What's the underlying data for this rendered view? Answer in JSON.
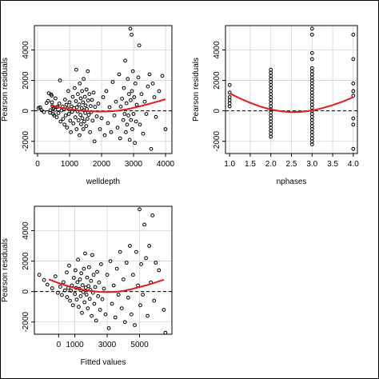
{
  "chart_data": [
    {
      "type": "scatter",
      "xlabel": "welldepth",
      "ylabel": "Pearson residuals",
      "xlim": [
        -100,
        4200
      ],
      "ylim": [
        -2800,
        5600
      ],
      "xticks": [
        0,
        1000,
        2000,
        3000,
        4000
      ],
      "yticks": [
        -2000,
        0,
        2000,
        4000
      ],
      "grid": true,
      "reference_line": 0,
      "curve_color": "#e41a1c",
      "curve": [
        [
          400,
          380
        ],
        [
          700,
          220
        ],
        [
          1000,
          110
        ],
        [
          1300,
          30
        ],
        [
          1600,
          -20
        ],
        [
          1900,
          -50
        ],
        [
          2200,
          -40
        ],
        [
          2500,
          10
        ],
        [
          2800,
          110
        ],
        [
          3100,
          250
        ],
        [
          3400,
          410
        ],
        [
          3700,
          580
        ],
        [
          4000,
          770
        ]
      ],
      "points": [
        [
          30,
          180
        ],
        [
          80,
          230
        ],
        [
          130,
          40
        ],
        [
          200,
          -80
        ],
        [
          280,
          520
        ],
        [
          330,
          660
        ],
        [
          350,
          1160
        ],
        [
          390,
          -120
        ],
        [
          400,
          40
        ],
        [
          420,
          1080
        ],
        [
          440,
          1000
        ],
        [
          450,
          560
        ],
        [
          470,
          300
        ],
        [
          490,
          -200
        ],
        [
          500,
          170
        ],
        [
          520,
          -300
        ],
        [
          550,
          70
        ],
        [
          560,
          820
        ],
        [
          600,
          -420
        ],
        [
          620,
          260
        ],
        [
          650,
          -150
        ],
        [
          680,
          480
        ],
        [
          700,
          2000
        ],
        [
          720,
          -700
        ],
        [
          750,
          30
        ],
        [
          780,
          280
        ],
        [
          800,
          -520
        ],
        [
          820,
          120
        ],
        [
          840,
          -900
        ],
        [
          860,
          740
        ],
        [
          880,
          -300
        ],
        [
          900,
          400
        ],
        [
          920,
          -1100
        ],
        [
          940,
          160
        ],
        [
          960,
          1300
        ],
        [
          980,
          -200
        ],
        [
          1000,
          560
        ],
        [
          1020,
          -640
        ],
        [
          1040,
          -1400
        ],
        [
          1060,
          300
        ],
        [
          1080,
          -60
        ],
        [
          1100,
          920
        ],
        [
          1120,
          -820
        ],
        [
          1140,
          180
        ],
        [
          1160,
          1500
        ],
        [
          1180,
          -420
        ],
        [
          1200,
          640
        ],
        [
          1210,
          2700
        ],
        [
          1220,
          -1200
        ],
        [
          1230,
          240
        ],
        [
          1250,
          -40
        ],
        [
          1260,
          1100
        ],
        [
          1280,
          -620
        ],
        [
          1300,
          420
        ],
        [
          1310,
          -1600
        ],
        [
          1320,
          1800
        ],
        [
          1340,
          -260
        ],
        [
          1350,
          820
        ],
        [
          1360,
          -880
        ],
        [
          1380,
          180
        ],
        [
          1390,
          1300
        ],
        [
          1400,
          -480
        ],
        [
          1420,
          560
        ],
        [
          1430,
          -1200
        ],
        [
          1440,
          2100
        ],
        [
          1450,
          40
        ],
        [
          1460,
          -700
        ],
        [
          1480,
          920
        ],
        [
          1490,
          -140
        ],
        [
          1500,
          360
        ],
        [
          1520,
          -1000
        ],
        [
          1530,
          1400
        ],
        [
          1540,
          120
        ],
        [
          1560,
          -520
        ],
        [
          1570,
          2600
        ],
        [
          1580,
          680
        ],
        [
          1600,
          -260
        ],
        [
          1620,
          1100
        ],
        [
          1640,
          -1400
        ],
        [
          1660,
          320
        ],
        [
          1680,
          -80
        ],
        [
          1700,
          720
        ],
        [
          1720,
          -640
        ],
        [
          1750,
          1200
        ],
        [
          1780,
          -2000
        ],
        [
          1800,
          260
        ],
        [
          1850,
          -360
        ],
        [
          1900,
          480
        ],
        [
          1950,
          -1200
        ],
        [
          2000,
          -480
        ],
        [
          2050,
          900
        ],
        [
          2100,
          -1600
        ],
        [
          2150,
          1300
        ],
        [
          2200,
          -800
        ],
        [
          2250,
          240
        ],
        [
          2300,
          -1400
        ],
        [
          2350,
          1900
        ],
        [
          2400,
          -300
        ],
        [
          2450,
          600
        ],
        [
          2500,
          -1100
        ],
        [
          2550,
          2400
        ],
        [
          2580,
          -1800
        ],
        [
          2600,
          280
        ],
        [
          2640,
          800
        ],
        [
          2680,
          -600
        ],
        [
          2700,
          1500
        ],
        [
          2720,
          -200
        ],
        [
          2740,
          3300
        ],
        [
          2760,
          -1400
        ],
        [
          2780,
          500
        ],
        [
          2800,
          -900
        ],
        [
          2820,
          2100
        ],
        [
          2840,
          -300
        ],
        [
          2860,
          1100
        ],
        [
          2880,
          -1900
        ],
        [
          2900,
          5400
        ],
        [
          2910,
          700
        ],
        [
          2920,
          -600
        ],
        [
          2940,
          5000
        ],
        [
          2950,
          1300
        ],
        [
          2960,
          -1200
        ],
        [
          2980,
          2600
        ],
        [
          3000,
          -200
        ],
        [
          3020,
          900
        ],
        [
          3040,
          -2100
        ],
        [
          3060,
          1800
        ],
        [
          3080,
          -700
        ],
        [
          3100,
          400
        ],
        [
          3150,
          2200
        ],
        [
          3180,
          4300
        ],
        [
          3200,
          -900
        ],
        [
          3250,
          1100
        ],
        [
          3300,
          -1500
        ],
        [
          3350,
          600
        ],
        [
          3400,
          -200
        ],
        [
          3450,
          1600
        ],
        [
          3500,
          2400
        ],
        [
          3550,
          -2500
        ],
        [
          3600,
          1800
        ],
        [
          3650,
          900
        ],
        [
          3700,
          -400
        ],
        [
          3800,
          1300
        ],
        [
          3900,
          2300
        ],
        [
          4000,
          -1200
        ]
      ]
    },
    {
      "type": "scatter",
      "xlabel": "nphases",
      "ylabel": "Pearson residuals",
      "xlim": [
        0.9,
        4.1
      ],
      "ylim": [
        -2800,
        5600
      ],
      "xticks": [
        1.0,
        1.5,
        2.0,
        2.5,
        3.0,
        3.5,
        4.0
      ],
      "yticks": [
        -2000,
        0,
        2000,
        4000
      ],
      "grid": true,
      "reference_line": 0,
      "curve_color": "#e41a1c",
      "curve": [
        [
          1.0,
          1150
        ],
        [
          1.25,
          820
        ],
        [
          1.5,
          530
        ],
        [
          1.75,
          280
        ],
        [
          2.0,
          90
        ],
        [
          2.25,
          -30
        ],
        [
          2.5,
          -80
        ],
        [
          2.75,
          -60
        ],
        [
          3.0,
          20
        ],
        [
          3.25,
          180
        ],
        [
          3.5,
          380
        ],
        [
          3.75,
          620
        ],
        [
          4.0,
          900
        ]
      ],
      "points": [
        [
          1,
          1700
        ],
        [
          1,
          1200
        ],
        [
          1,
          900
        ],
        [
          1,
          700
        ],
        [
          1,
          500
        ],
        [
          1,
          300
        ],
        [
          2,
          2700
        ],
        [
          2,
          2500
        ],
        [
          2,
          2300
        ],
        [
          2,
          2100
        ],
        [
          2,
          1900
        ],
        [
          2,
          1700
        ],
        [
          2,
          1500
        ],
        [
          2,
          1300
        ],
        [
          2,
          1100
        ],
        [
          2,
          900
        ],
        [
          2,
          700
        ],
        [
          2,
          500
        ],
        [
          2,
          300
        ],
        [
          2,
          100
        ],
        [
          2,
          -100
        ],
        [
          2,
          -300
        ],
        [
          2,
          -500
        ],
        [
          2,
          -700
        ],
        [
          2,
          -900
        ],
        [
          2,
          -1100
        ],
        [
          2,
          -1300
        ],
        [
          2,
          -1500
        ],
        [
          2,
          -1700
        ],
        [
          3,
          5400
        ],
        [
          3,
          5000
        ],
        [
          3,
          3800
        ],
        [
          3,
          3400
        ],
        [
          3,
          2800
        ],
        [
          3,
          2600
        ],
        [
          3,
          2400
        ],
        [
          3,
          2200
        ],
        [
          3,
          2000
        ],
        [
          3,
          1800
        ],
        [
          3,
          1600
        ],
        [
          3,
          1400
        ],
        [
          3,
          1200
        ],
        [
          3,
          1000
        ],
        [
          3,
          800
        ],
        [
          3,
          600
        ],
        [
          3,
          400
        ],
        [
          3,
          200
        ],
        [
          3,
          0
        ],
        [
          3,
          -200
        ],
        [
          3,
          -400
        ],
        [
          3,
          -600
        ],
        [
          3,
          -800
        ],
        [
          3,
          -1000
        ],
        [
          3,
          -1200
        ],
        [
          3,
          -1400
        ],
        [
          3,
          -1600
        ],
        [
          3,
          -1800
        ],
        [
          3,
          -2000
        ],
        [
          3,
          -2200
        ],
        [
          4,
          5000
        ],
        [
          4,
          3400
        ],
        [
          4,
          1800
        ],
        [
          4,
          1300
        ],
        [
          4,
          1000
        ],
        [
          4,
          -500
        ],
        [
          4,
          -900
        ],
        [
          4,
          -2500
        ]
      ]
    },
    {
      "type": "scatter",
      "xlabel": "Fitted values",
      "ylabel": "Pearson residuals",
      "xlim": [
        -1500,
        7000
      ],
      "ylim": [
        -2800,
        5600
      ],
      "xticks": [
        0,
        1000,
        3000,
        5000
      ],
      "yticks": [
        -2000,
        0,
        2000,
        4000
      ],
      "grid": true,
      "reference_line": 0,
      "curve_color": "#e41a1c",
      "curve": [
        [
          -600,
          800
        ],
        [
          0,
          560
        ],
        [
          500,
          380
        ],
        [
          1000,
          240
        ],
        [
          1500,
          120
        ],
        [
          2000,
          40
        ],
        [
          2500,
          -20
        ],
        [
          3000,
          -40
        ],
        [
          3500,
          -20
        ],
        [
          4000,
          40
        ],
        [
          4500,
          160
        ],
        [
          5000,
          300
        ],
        [
          5500,
          440
        ],
        [
          6000,
          600
        ],
        [
          6500,
          780
        ]
      ],
      "points": [
        [
          -1200,
          1100
        ],
        [
          -900,
          760
        ],
        [
          -700,
          460
        ],
        [
          -400,
          220
        ],
        [
          -200,
          1000
        ],
        [
          -50,
          -80
        ],
        [
          100,
          320
        ],
        [
          200,
          -220
        ],
        [
          300,
          620
        ],
        [
          400,
          80
        ],
        [
          500,
          1260
        ],
        [
          520,
          -360
        ],
        [
          600,
          240
        ],
        [
          650,
          1700
        ],
        [
          700,
          -600
        ],
        [
          760,
          60
        ],
        [
          820,
          400
        ],
        [
          880,
          -900
        ],
        [
          940,
          900
        ],
        [
          1000,
          -160
        ],
        [
          1040,
          1400
        ],
        [
          1080,
          240
        ],
        [
          1120,
          -520
        ],
        [
          1160,
          620
        ],
        [
          1200,
          2100
        ],
        [
          1240,
          -1000
        ],
        [
          1280,
          180
        ],
        [
          1320,
          800
        ],
        [
          1360,
          -300
        ],
        [
          1400,
          1200
        ],
        [
          1440,
          -1400
        ],
        [
          1480,
          420
        ],
        [
          1520,
          -40
        ],
        [
          1560,
          1500
        ],
        [
          1600,
          -700
        ],
        [
          1640,
          2500
        ],
        [
          1680,
          260
        ],
        [
          1720,
          -200
        ],
        [
          1760,
          920
        ],
        [
          1800,
          -1100
        ],
        [
          1840,
          360
        ],
        [
          1880,
          1600
        ],
        [
          1920,
          -480
        ],
        [
          1960,
          120
        ],
        [
          2000,
          700
        ],
        [
          2040,
          -1600
        ],
        [
          2080,
          2400
        ],
        [
          2120,
          -80
        ],
        [
          2160,
          1100
        ],
        [
          2200,
          -800
        ],
        [
          2260,
          300
        ],
        [
          2320,
          -1900
        ],
        [
          2380,
          1300
        ],
        [
          2440,
          -300
        ],
        [
          2500,
          600
        ],
        [
          2560,
          -1200
        ],
        [
          2620,
          1800
        ],
        [
          2700,
          -500
        ],
        [
          2800,
          200
        ],
        [
          2900,
          -1500
        ],
        [
          3000,
          1100
        ],
        [
          3100,
          -2400
        ],
        [
          3200,
          2000
        ],
        [
          3300,
          -800
        ],
        [
          3400,
          400
        ],
        [
          3500,
          -1700
        ],
        [
          3600,
          1500
        ],
        [
          3700,
          -200
        ],
        [
          3800,
          2600
        ],
        [
          3900,
          -1100
        ],
        [
          4000,
          800
        ],
        [
          4100,
          -2000
        ],
        [
          4200,
          1900
        ],
        [
          4300,
          -400
        ],
        [
          4400,
          3000
        ],
        [
          4500,
          -1500
        ],
        [
          4600,
          1100
        ],
        [
          4700,
          -2200
        ],
        [
          4800,
          2600
        ],
        [
          4900,
          400
        ],
        [
          5000,
          5400
        ],
        [
          5050,
          -900
        ],
        [
          5100,
          1800
        ],
        [
          5200,
          -200
        ],
        [
          5300,
          4400
        ],
        [
          5400,
          2200
        ],
        [
          5500,
          -1600
        ],
        [
          5600,
          3000
        ],
        [
          5700,
          600
        ],
        [
          5800,
          5000
        ],
        [
          5900,
          -600
        ],
        [
          6000,
          1900
        ],
        [
          6200,
          1400
        ],
        [
          6500,
          -1200
        ],
        [
          6600,
          -2700
        ]
      ]
    }
  ]
}
